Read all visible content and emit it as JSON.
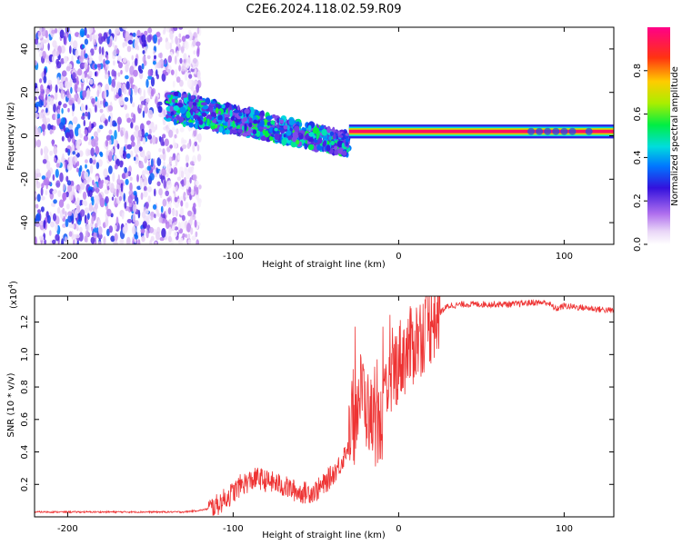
{
  "title": "C2E6.2024.118.02.59.R09",
  "colors": {
    "line": "#ee3333",
    "axis": "#000000",
    "background": "#ffffff"
  },
  "chart_data": [
    {
      "type": "heatmap",
      "title": "",
      "xlabel": "Height of straight line (km)",
      "ylabel": "Frequency (Hz)",
      "xlim": [
        -220,
        130
      ],
      "ylim": [
        -50,
        50
      ],
      "xticks": [
        -200,
        -100,
        0,
        100
      ],
      "xtick_labels": [
        "-200",
        "-100",
        "0",
        "100"
      ],
      "yticks": [
        -40,
        -20,
        0,
        20,
        40
      ],
      "ytick_labels": [
        "-40",
        "-20",
        "0",
        "20",
        "40"
      ],
      "colorbar": {
        "label": "Normalized spectral amplitude",
        "range": [
          0,
          1
        ],
        "ticks": [
          0.0,
          0.2,
          0.4,
          0.6,
          0.8
        ],
        "tick_labels": [
          "0.0",
          "0.2",
          "0.4",
          "0.6",
          "0.8"
        ]
      },
      "features": [
        {
          "name": "noise",
          "x_range": [
            -220,
            -120
          ],
          "freq_range": [
            -50,
            50
          ],
          "amplitude": 0.15
        },
        {
          "name": "transition",
          "x_range": [
            -140,
            -30
          ],
          "freq_center_start": 14,
          "freq_center_end": -4,
          "amplitude": 0.35
        },
        {
          "name": "signal",
          "x_range": [
            -30,
            130
          ],
          "freq": 2,
          "amplitude": 0.95
        }
      ]
    },
    {
      "type": "line",
      "title": "",
      "xlabel": "Height of straight line (km)",
      "ylabel": "SNR (10 * v/v)",
      "yscale_label": "(x10",
      "yscale_exp": "4",
      "yscale_close": ")",
      "xlim": [
        -220,
        130
      ],
      "ylim": [
        0,
        1.36
      ],
      "xticks": [
        -200,
        -100,
        0,
        100
      ],
      "xtick_labels": [
        "-200",
        "-100",
        "0",
        "100"
      ],
      "yticks": [
        0.2,
        0.4,
        0.6,
        0.8,
        1.0,
        1.2
      ],
      "ytick_labels": [
        "0.2",
        "0.4",
        "0.6",
        "0.8",
        "1.0",
        "1.2"
      ],
      "series": [
        {
          "name": "SNR",
          "x": [
            -220,
            -200,
            -180,
            -160,
            -140,
            -130,
            -120,
            -115,
            -110,
            -105,
            -100,
            -95,
            -90,
            -85,
            -80,
            -75,
            -70,
            -65,
            -60,
            -55,
            -50,
            -45,
            -40,
            -35,
            -30,
            -27,
            -25,
            -22,
            -20,
            -17,
            -15,
            -12,
            -10,
            -7,
            -5,
            -2,
            0,
            5,
            10,
            15,
            20,
            25,
            30,
            40,
            50,
            60,
            70,
            80,
            90,
            95,
            100,
            110,
            120,
            130
          ],
          "values": [
            0.03,
            0.03,
            0.03,
            0.03,
            0.03,
            0.03,
            0.04,
            0.05,
            0.07,
            0.11,
            0.15,
            0.2,
            0.22,
            0.24,
            0.22,
            0.21,
            0.19,
            0.17,
            0.15,
            0.15,
            0.16,
            0.2,
            0.26,
            0.33,
            0.45,
            0.55,
            0.7,
            0.8,
            0.68,
            0.62,
            0.58,
            0.55,
            0.6,
            0.72,
            0.82,
            0.92,
            0.97,
            1.01,
            1.08,
            1.14,
            1.2,
            1.26,
            1.3,
            1.31,
            1.31,
            1.31,
            1.31,
            1.32,
            1.32,
            1.28,
            1.3,
            1.29,
            1.28,
            1.27
          ]
        }
      ]
    }
  ]
}
